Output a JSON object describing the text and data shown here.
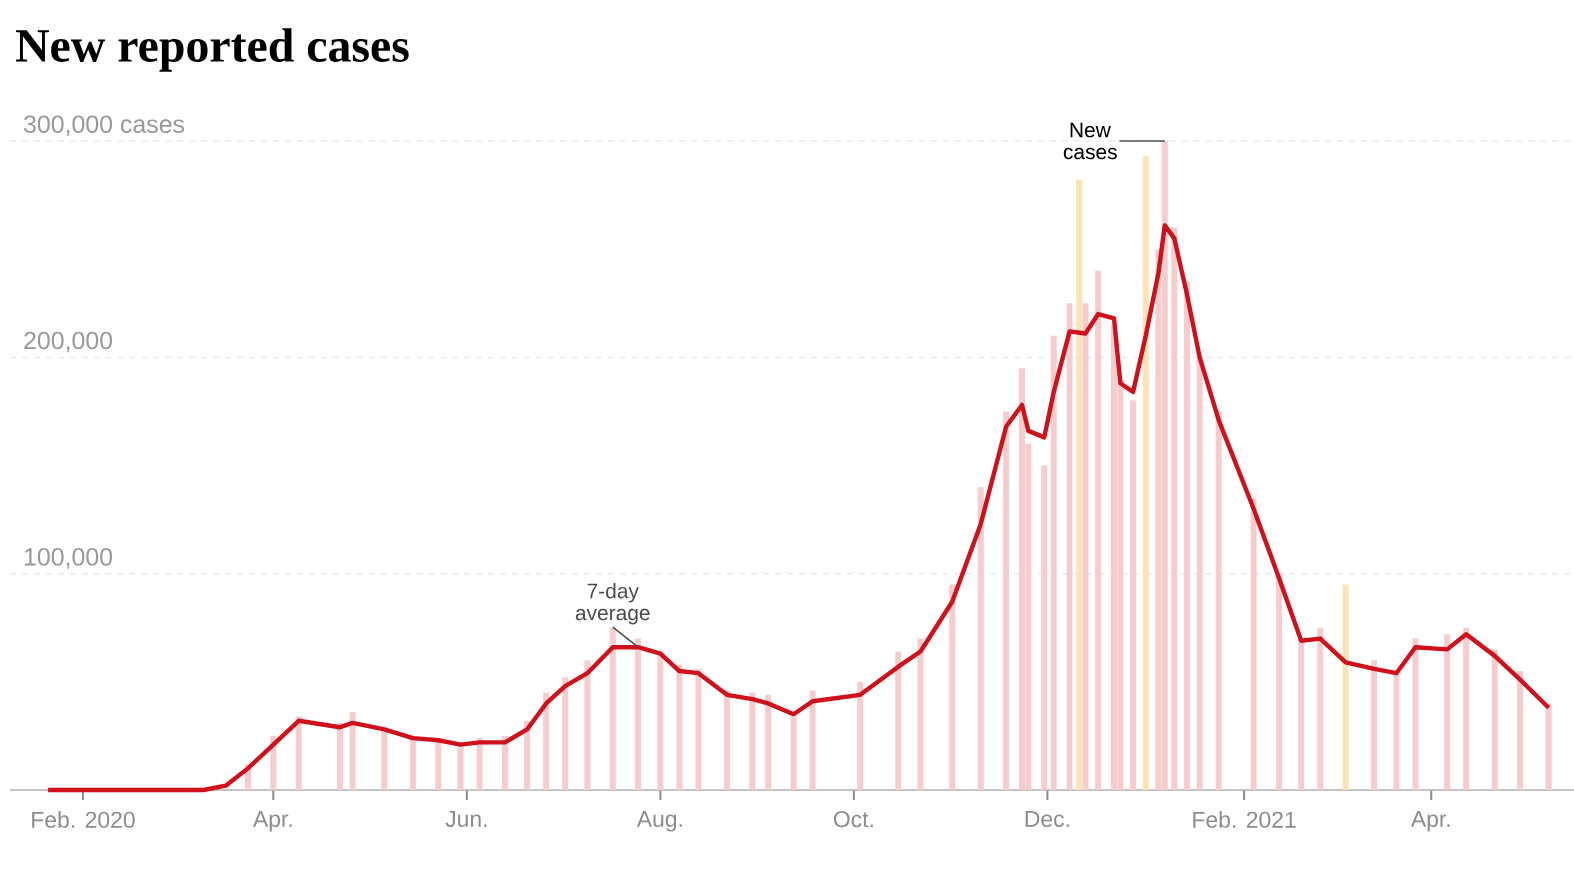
{
  "chart_data": {
    "type": "bar",
    "title": "New reported cases",
    "xlim": [
      "2020-01-09",
      "2021-05-16"
    ],
    "ylim": [
      0,
      300000
    ],
    "xticks": [
      {
        "value": "2020-02-01",
        "label": "Feb. 2020"
      },
      {
        "value": "2020-04-01",
        "label": "Apr."
      },
      {
        "value": "2020-06-01",
        "label": "Jun."
      },
      {
        "value": "2020-08-01",
        "label": "Aug."
      },
      {
        "value": "2020-10-01",
        "label": "Oct."
      },
      {
        "value": "2020-12-01",
        "label": "Dec."
      },
      {
        "value": "2021-02-01",
        "label": "Feb. 2021"
      },
      {
        "value": "2021-04-01",
        "label": "Apr."
      }
    ],
    "yticks": [
      {
        "value": 100000,
        "label": "100,000"
      },
      {
        "value": 200000,
        "label": "200,000"
      },
      {
        "value": 300000,
        "label": "300,000 cases"
      }
    ],
    "grid": "y",
    "series": [
      {
        "x": [
          "2020-03-24",
          "2020-04-01",
          "2020-04-09",
          "2020-04-22",
          "2020-04-26",
          "2020-05-06",
          "2020-05-15",
          "2020-05-23",
          "2020-05-30",
          "2020-06-05",
          "2020-06-13",
          "2020-06-20",
          "2020-06-26",
          "2020-07-02",
          "2020-07-09",
          "2020-07-17",
          "2020-07-25",
          "2020-08-01",
          "2020-08-07",
          "2020-08-13",
          "2020-08-22",
          "2020-08-30",
          "2020-09-04",
          "2020-09-12",
          "2020-09-18",
          "2020-10-03",
          "2020-10-15",
          "2020-10-22",
          "2020-11-01",
          "2020-11-10",
          "2020-11-18",
          "2020-11-23",
          "2020-11-25",
          "2020-11-30",
          "2020-12-03",
          "2020-12-08",
          "2020-12-11",
          "2020-12-13",
          "2020-12-17",
          "2020-12-22",
          "2020-12-24",
          "2020-12-28",
          "2021-01-01",
          "2021-01-05",
          "2021-01-07",
          "2021-01-10",
          "2021-01-14",
          "2021-01-18",
          "2021-01-24",
          "2021-02-04",
          "2021-02-12",
          "2021-02-19",
          "2021-02-25",
          "2021-03-05",
          "2021-03-14",
          "2021-03-21",
          "2021-03-27",
          "2021-04-06",
          "2021-04-12",
          "2021-04-21",
          "2021-04-29",
          "2021-05-08"
        ],
        "values": [
          12000,
          25000,
          34000,
          31000,
          36000,
          29000,
          25000,
          24000,
          22000,
          24000,
          25000,
          32000,
          45000,
          52000,
          60000,
          75000,
          70000,
          64000,
          58000,
          56000,
          46000,
          45000,
          44000,
          34000,
          46000,
          50000,
          64000,
          70000,
          95000,
          140000,
          175000,
          195000,
          160000,
          150000,
          210000,
          225000,
          282000,
          225000,
          240000,
          215000,
          190000,
          180000,
          293000,
          250000,
          300000,
          260000,
          235000,
          200000,
          175000,
          135000,
          100000,
          70000,
          75000,
          95000,
          60000,
          55000,
          70000,
          72000,
          75000,
          65000,
          55000,
          40000
        ],
        "colors": [
          "#f6cccc",
          "#f6cccc",
          "#f6cccc",
          "#f6cccc",
          "#f6cccc",
          "#f6cccc",
          "#f6cccc",
          "#f6cccc",
          "#f6cccc",
          "#f6cccc",
          "#f6cccc",
          "#f6cccc",
          "#f6cccc",
          "#f6cccc",
          "#f6cccc",
          "#f6cccc",
          "#f6cccc",
          "#f6cccc",
          "#f6cccc",
          "#f6cccc",
          "#f6cccc",
          "#f6cccc",
          "#f6cccc",
          "#f6cccc",
          "#f6cccc",
          "#f6cccc",
          "#f6cccc",
          "#f6cccc",
          "#f6cccc",
          "#f6cccc",
          "#f6cccc",
          "#f6cccc",
          "#f6cccc",
          "#f6cccc",
          "#f6cccc",
          "#f6cccc",
          "#fde3b5",
          "#f6cccc",
          "#f6cccc",
          "#f6cccc",
          "#f6cccc",
          "#f6cccc",
          "#fde3b5",
          "#f6cccc",
          "#f6cccc",
          "#f6cccc",
          "#f6cccc",
          "#f6cccc",
          "#f6cccc",
          "#f6cccc",
          "#f6cccc",
          "#f6cccc",
          "#f6cccc",
          "#fde3b5",
          "#f6cccc",
          "#f6cccc",
          "#f6cccc",
          "#f6cccc",
          "#f6cccc",
          "#f6cccc",
          "#f6cccc",
          "#f6cccc"
        ]
      },
      {
        "type": "line",
        "color": "#d0111b",
        "x": [
          "2020-01-21",
          "2020-03-01",
          "2020-03-10",
          "2020-03-17",
          "2020-03-24",
          "2020-04-01",
          "2020-04-09",
          "2020-04-22",
          "2020-04-26",
          "2020-05-06",
          "2020-05-15",
          "2020-05-23",
          "2020-05-30",
          "2020-06-05",
          "2020-06-13",
          "2020-06-20",
          "2020-06-26",
          "2020-07-02",
          "2020-07-09",
          "2020-07-17",
          "2020-07-25",
          "2020-08-01",
          "2020-08-07",
          "2020-08-13",
          "2020-08-22",
          "2020-08-30",
          "2020-09-04",
          "2020-09-12",
          "2020-09-18",
          "2020-10-03",
          "2020-10-15",
          "2020-10-22",
          "2020-11-01",
          "2020-11-10",
          "2020-11-18",
          "2020-11-23",
          "2020-11-25",
          "2020-11-30",
          "2020-12-03",
          "2020-12-08",
          "2020-12-13",
          "2020-12-17",
          "2020-12-22",
          "2020-12-24",
          "2020-12-28",
          "2021-01-01",
          "2021-01-05",
          "2021-01-07",
          "2021-01-10",
          "2021-01-14",
          "2021-01-18",
          "2021-01-24",
          "2021-02-04",
          "2021-02-12",
          "2021-02-19",
          "2021-02-25",
          "2021-03-05",
          "2021-03-14",
          "2021-03-21",
          "2021-03-27",
          "2021-04-06",
          "2021-04-12",
          "2021-04-21",
          "2021-04-29",
          "2021-05-08"
        ],
        "values": [
          0,
          0,
          0,
          2000,
          10000,
          21000,
          32000,
          29000,
          31000,
          28000,
          24000,
          23000,
          21000,
          22000,
          22000,
          28000,
          40000,
          48000,
          54000,
          66000,
          66000,
          63000,
          55000,
          54000,
          44000,
          42000,
          40000,
          35000,
          41000,
          44000,
          57000,
          64000,
          87000,
          123000,
          168000,
          178000,
          166000,
          163000,
          184000,
          212000,
          211000,
          220000,
          218000,
          188000,
          184000,
          210000,
          239000,
          261000,
          255000,
          229000,
          200000,
          171000,
          130000,
          98000,
          69000,
          70000,
          59000,
          56000,
          54000,
          66000,
          65000,
          72000,
          62000,
          51000,
          38000
        ]
      }
    ],
    "annotations": [
      {
        "text": "7-day average",
        "x": "2020-07-25",
        "y": 66000
      },
      {
        "text": "New cases",
        "x": "2021-01-07",
        "y": 300000
      }
    ]
  }
}
